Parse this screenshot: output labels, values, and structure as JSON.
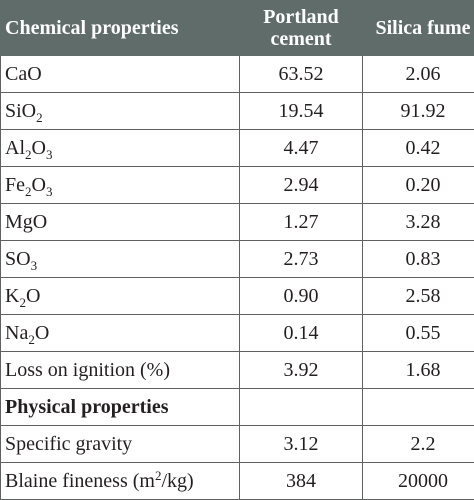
{
  "header": {
    "col1": "Chemical properties",
    "col2_line1": "Portland",
    "col2_line2": "cement",
    "col3": "Silica fume"
  },
  "rows": [
    {
      "base": "CaO",
      "sub": "",
      "after": "",
      "cement": "63.52",
      "silica": "2.06"
    },
    {
      "base": "SiO",
      "sub": "2",
      "after": "",
      "cement": "19.54",
      "silica": "91.92"
    },
    {
      "base": "Al",
      "sub": "2",
      "mid": "O",
      "sub2": "3",
      "cement": "4.47",
      "silica": "0.42"
    },
    {
      "base": "Fe",
      "sub": "2",
      "mid": "O",
      "sub2": "3",
      "cement": "2.94",
      "silica": "0.20"
    },
    {
      "base": "MgO",
      "cement": "1.27",
      "silica": "3.28"
    },
    {
      "base": "SO",
      "sub": "3",
      "cement": "2.73",
      "silica": "0.83"
    },
    {
      "base": "K",
      "sub": "2",
      "after": "O",
      "cement": "0.90",
      "silica": "2.58"
    },
    {
      "base": "Na",
      "sub": "2",
      "after": "O",
      "cement": "0.14",
      "silica": "0.55"
    },
    {
      "base": "Loss on ignition (%)",
      "cement": "3.92",
      "silica": "1.68"
    }
  ],
  "physical_header": "Physical properties",
  "physical": {
    "gravity_label": "Specific gravity",
    "gravity_cement": "3.12",
    "gravity_silica": "2.2",
    "blaine_label_pre": "Blaine fineness (m",
    "blaine_label_sup": "2",
    "blaine_label_post": "/kg)",
    "blaine_cement": "384",
    "blaine_silica": "20000"
  }
}
